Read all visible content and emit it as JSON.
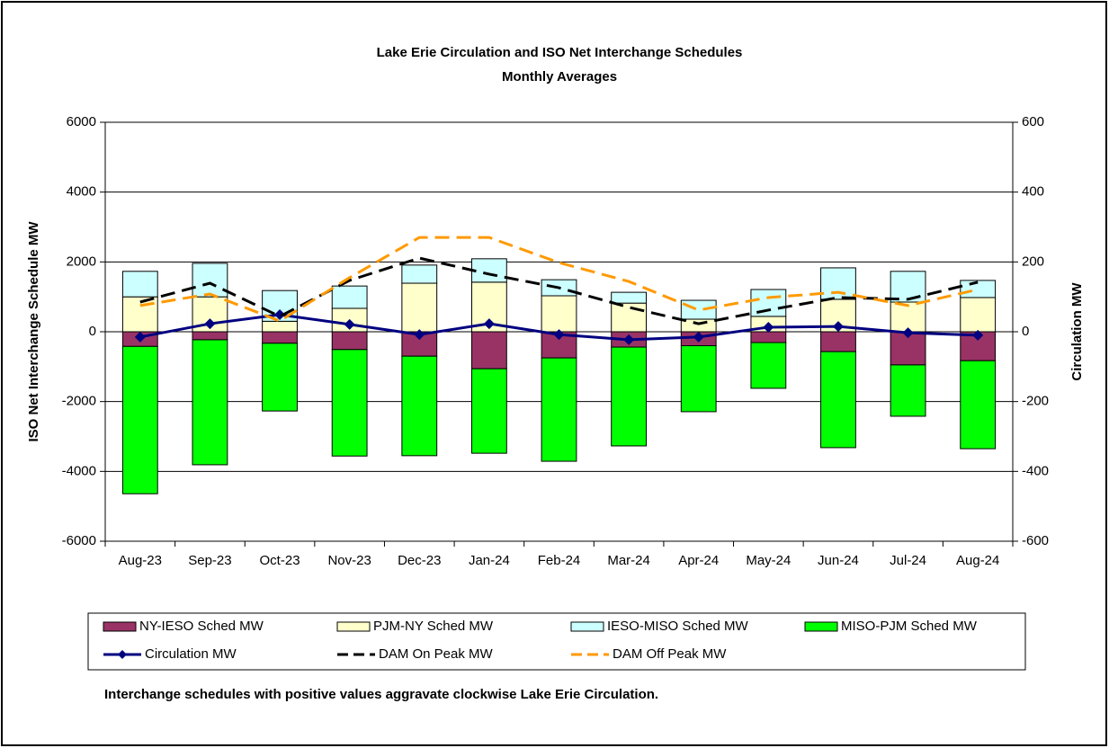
{
  "chart_data": {
    "type": "bar",
    "title": "Lake Erie Circulation and ISO Net Interchange Schedules",
    "subtitle": "Monthly Averages",
    "y_label": "ISO Net Interchange Schedule MW",
    "y2_label": "Circulation MW",
    "note": "Interchange schedules with positive values aggravate clockwise Lake Erie Circulation.",
    "categories": [
      "Aug-23",
      "Sep-23",
      "Oct-23",
      "Nov-23",
      "Dec-23",
      "Jan-24",
      "Feb-24",
      "Mar-24",
      "Apr-24",
      "May-24",
      "Jun-24",
      "Jul-24",
      "Aug-24"
    ],
    "ylim": [
      -6000,
      6000
    ],
    "yticks": [
      -6000,
      -4000,
      -2000,
      0,
      2000,
      4000,
      6000
    ],
    "y2lim": [
      -600,
      600
    ],
    "y2ticks": [
      -600,
      -400,
      -200,
      0,
      200,
      400,
      600
    ],
    "grid": true,
    "stacked": true,
    "legend": "bottom",
    "series": [
      {
        "name": "NY-IESO Sched MW",
        "type": "bar",
        "color": "#993366",
        "values": [
          -420,
          -230,
          -330,
          -510,
          -700,
          -1060,
          -750,
          -440,
          -400,
          -310,
          -570,
          -950,
          -830
        ]
      },
      {
        "name": "PJM-NY Sched MW",
        "type": "bar",
        "color": "#FFFFCC",
        "values": [
          1000,
          1000,
          300,
          670,
          1390,
          1420,
          1030,
          820,
          360,
          440,
          930,
          850,
          980
        ]
      },
      {
        "name": "IESO-MISO Sched MW",
        "type": "bar",
        "color": "#CCFFFF",
        "values": [
          730,
          960,
          880,
          640,
          520,
          670,
          460,
          310,
          540,
          770,
          900,
          880,
          490
        ]
      },
      {
        "name": "MISO-PJM Sched MW",
        "type": "bar",
        "color": "#00FF00",
        "values": [
          -4220,
          -3580,
          -1940,
          -3050,
          -2850,
          -2420,
          -2960,
          -2830,
          -1890,
          -1310,
          -2750,
          -1470,
          -2520
        ]
      },
      {
        "name": "Circulation MW",
        "type": "line",
        "axis": "y2",
        "color": "#000080",
        "marker": "diamond",
        "values": [
          -15,
          23,
          49,
          21,
          -8,
          23,
          -8,
          -23,
          -15,
          13,
          15,
          -3,
          -10
        ]
      },
      {
        "name": "DAM On Peak MW",
        "type": "line",
        "axis": "y2",
        "color": "#000000",
        "dashed": true,
        "values": [
          85,
          139,
          44,
          147,
          211,
          165,
          126,
          70,
          23,
          62,
          98,
          93,
          142
        ]
      },
      {
        "name": "DAM Off Peak MW",
        "type": "line",
        "axis": "y2",
        "color": "#FF9900",
        "dashed": true,
        "values": [
          75,
          108,
          31,
          155,
          270,
          270,
          198,
          144,
          62,
          98,
          113,
          75,
          121
        ]
      }
    ]
  }
}
